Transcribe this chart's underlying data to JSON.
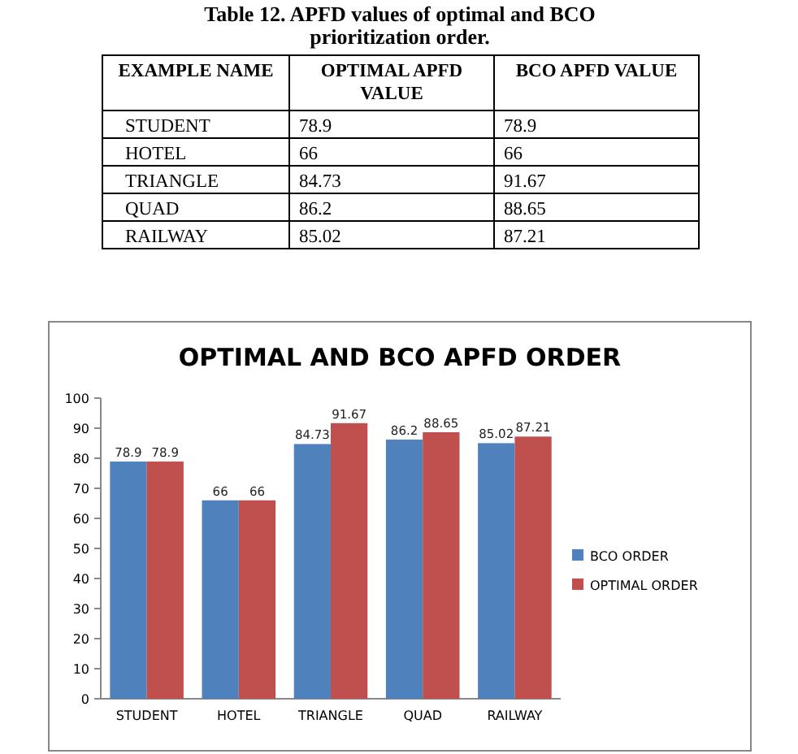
{
  "chart_data": {
    "type": "bar",
    "title": "OPTIMAL AND BCO APFD ORDER",
    "annotations": [
      "Table 12. APFD values of optimal and BCO prioritization order.",
      "EXAMPLE NAME",
      "OPTIMAL APFD VALUE",
      "BCO APFD VALUE",
      "78.9",
      "78.9",
      "66",
      "66",
      "84.73",
      "91.67",
      "86.2",
      "88.65",
      "85.02",
      "87.21"
    ],
    "categories": [
      "STUDENT",
      "HOTEL",
      "TRIANGLE",
      "QUAD",
      "RAILWAY"
    ],
    "series": [
      {
        "name": "BCO ORDER",
        "color": "#4f81bd",
        "values": [
          78.9,
          66,
          84.73,
          86.2,
          85.02
        ]
      },
      {
        "name": "OPTIMAL ORDER",
        "color": "#c0504d",
        "values": [
          78.9,
          66,
          91.67,
          88.65,
          87.21
        ]
      }
    ],
    "ylim": [
      0,
      100
    ],
    "yticks": [
      0,
      10,
      20,
      30,
      40,
      50,
      60,
      70,
      80,
      90,
      100
    ],
    "data_labels": true,
    "legend": "right"
  }
}
